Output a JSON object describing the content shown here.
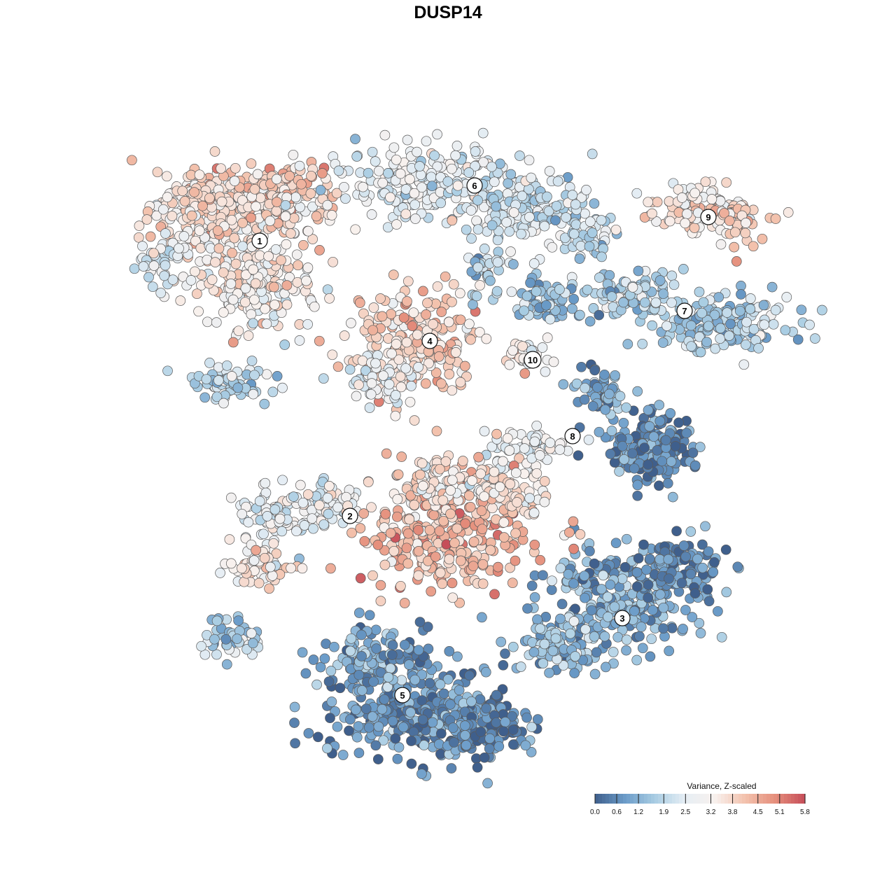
{
  "title": "DUSP14",
  "chart_data": {
    "type": "scatter",
    "subtype": "tsne-embedding",
    "title": "DUSP14",
    "value_range": [
      0.0,
      5.8
    ],
    "color_scale": {
      "title": "Variance, Z-scaled",
      "colors": [
        "#3f5f8c",
        "#6b9cc9",
        "#a9cde3",
        "#e6eef4",
        "#f8f1ee",
        "#f3c2ad",
        "#e58f7c",
        "#c64d59"
      ],
      "stops": [
        0.0,
        0.6,
        1.2,
        1.9,
        2.5,
        3.2,
        3.8,
        4.5,
        5.1,
        5.8
      ],
      "tick_labels": [
        "0.0",
        "0.6",
        "1.2",
        "1.9",
        "2.5",
        "3.2",
        "3.8",
        "4.5",
        "5.1",
        "5.8"
      ],
      "placement": "bottom-right"
    },
    "clusters": [
      {
        "label": "1",
        "mean_value": 3.3
      },
      {
        "label": "2",
        "mean_value": 2.9
      },
      {
        "label": "3",
        "mean_value": 1.3
      },
      {
        "label": "4",
        "mean_value": 3.6
      },
      {
        "label": "5",
        "mean_value": 1.1
      },
      {
        "label": "6",
        "mean_value": 2.6
      },
      {
        "label": "7",
        "mean_value": 1.7
      },
      {
        "label": "8",
        "mean_value": 0.5
      },
      {
        "label": "9",
        "mean_value": 3.0
      },
      {
        "label": "10",
        "mean_value": 2.5
      }
    ],
    "grid": false,
    "axes_visible": false
  }
}
